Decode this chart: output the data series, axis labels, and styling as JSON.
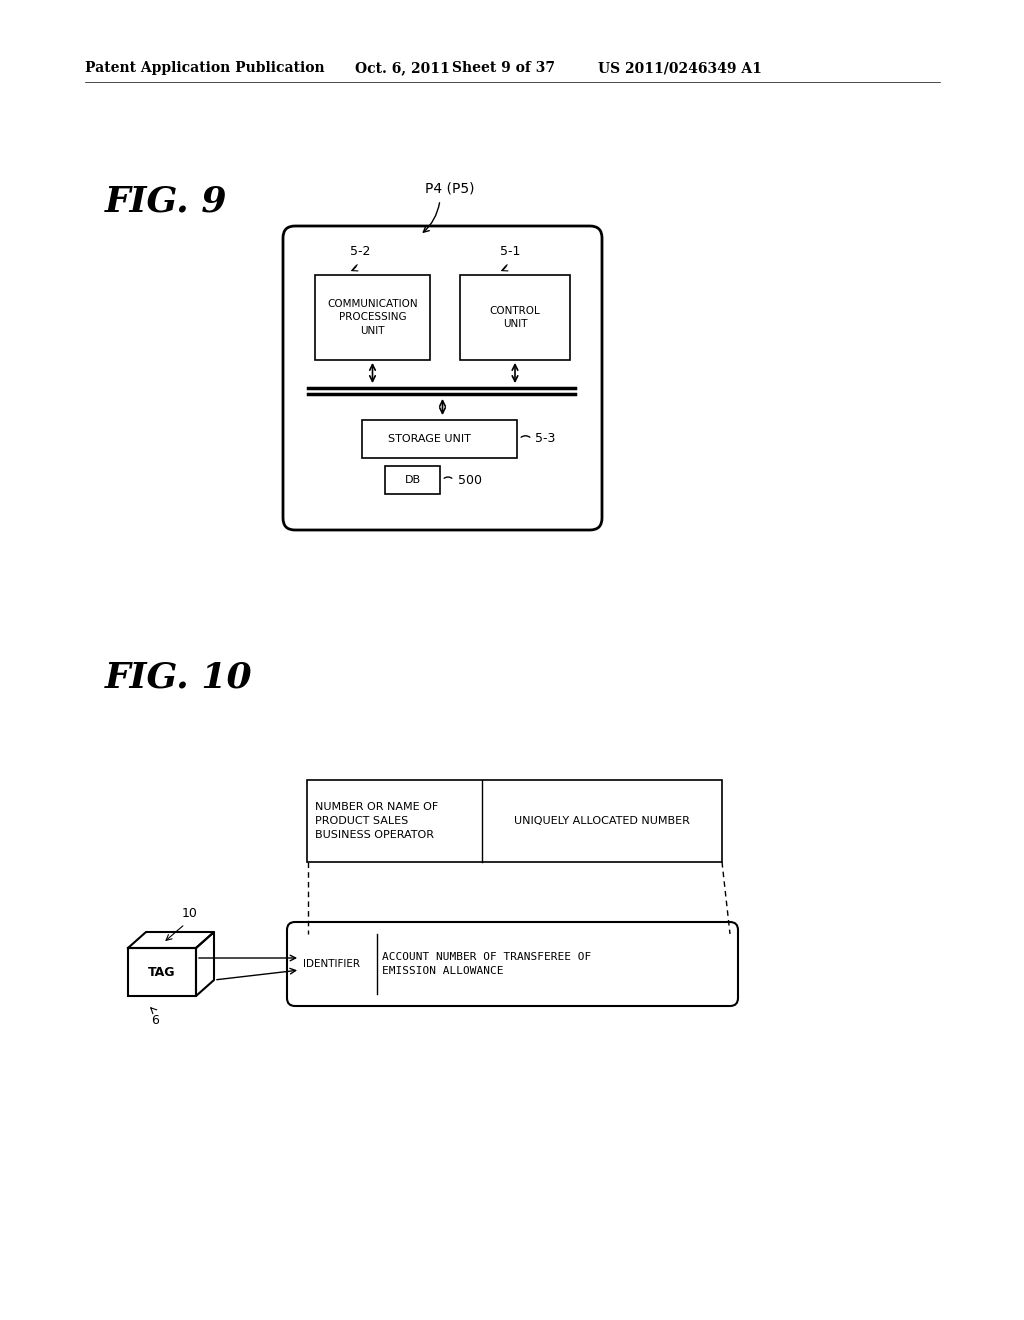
{
  "bg_color": "#ffffff",
  "header_text": "Patent Application Publication",
  "header_date": "Oct. 6, 2011",
  "header_sheet": "Sheet 9 of 37",
  "header_patent": "US 2011/0246349 A1",
  "fig9_label": "FIG. 9",
  "fig10_label": "FIG. 10",
  "fig9_p4_label": "P4 (P5)",
  "fig9_label52": "5-2",
  "fig9_label51": "5-1",
  "fig9_comm_text": "COMMUNICATION\nPROCESSING\nUNIT",
  "fig9_ctrl_text": "CONTROL\nUNIT",
  "fig9_storage_text": "STORAGE UNIT",
  "fig9_label53": "5-3",
  "fig9_db_text": "DB",
  "fig9_label500": "500",
  "fig10_tag_label": "10",
  "fig10_tag_text": "TAG",
  "fig10_label6": "6",
  "fig10_top_left_text": "NUMBER OR NAME OF\nPRODUCT SALES\nBUSINESS OPERATOR",
  "fig10_top_right_text": "UNIQUELY ALLOCATED NUMBER",
  "fig10_identifier_text": "IDENTIFIER",
  "fig10_account_text": "ACCOUNT NUMBER OF TRANSFEREE OF\nEMISSION ALLOWANCE"
}
